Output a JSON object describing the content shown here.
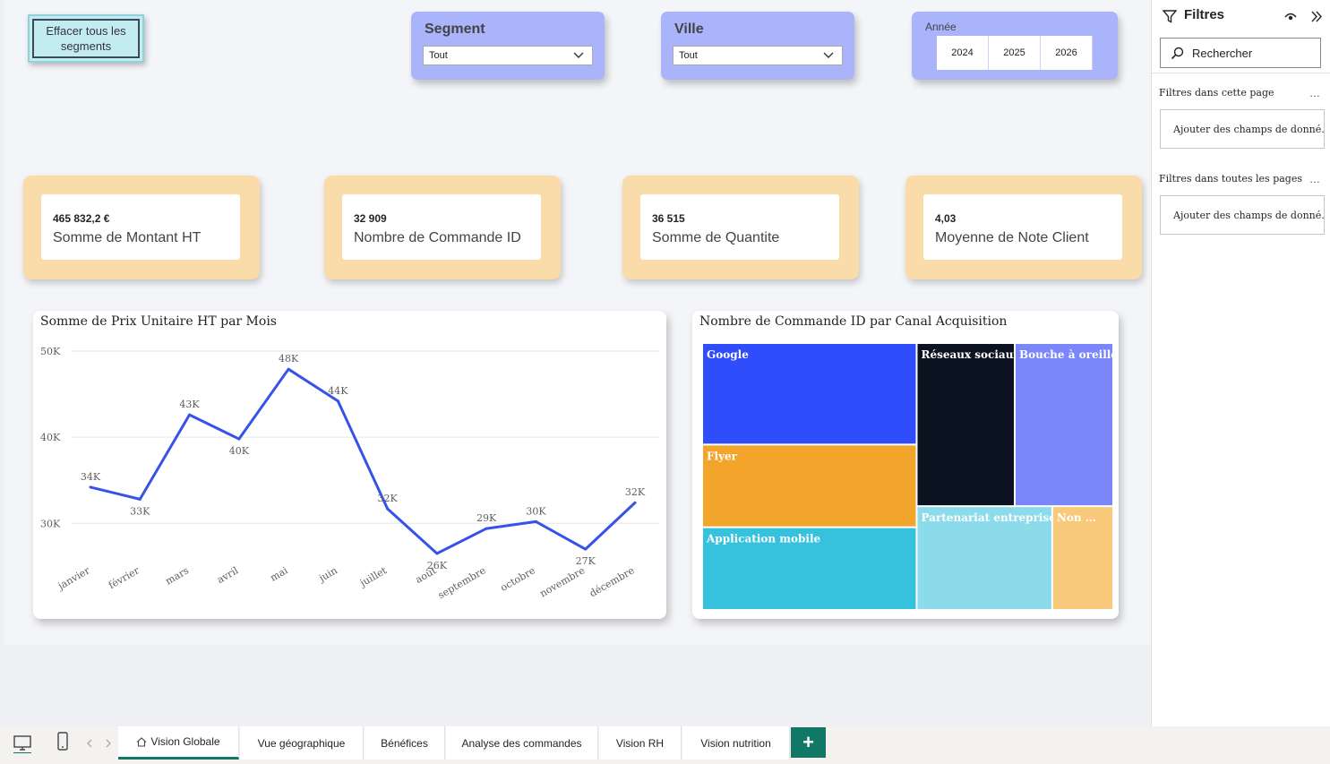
{
  "clear_button": {
    "label": "Effacer tous les segments"
  },
  "slicers": {
    "segment": {
      "title": "Segment",
      "value": "Tout"
    },
    "ville": {
      "title": "Ville",
      "value": "Tout"
    },
    "annee": {
      "title": "Année",
      "years": [
        "2024",
        "2025",
        "2026"
      ]
    }
  },
  "kpis": [
    {
      "value": "465 832,2 €",
      "label": "Somme de Montant HT"
    },
    {
      "value": "32 909",
      "label": "Nombre de Commande ID"
    },
    {
      "value": "36 515",
      "label": "Somme de Quantite"
    },
    {
      "value": "4,03",
      "label": "Moyenne de Note Client"
    }
  ],
  "line_chart_title": "Somme de Prix Unitaire HT par Mois",
  "treemap_title": "Nombre de Commande ID par Canal Acquisition",
  "chart_data": [
    {
      "type": "line",
      "title": "Somme de Prix Unitaire HT par Mois",
      "categories": [
        "janvier",
        "février",
        "mars",
        "avril",
        "mai",
        "juin",
        "juillet",
        "août",
        "septembre",
        "octobre",
        "novembre",
        "décembre"
      ],
      "values": [
        34200,
        32800,
        42600,
        39800,
        47900,
        44200,
        31700,
        26500,
        29400,
        30200,
        27000,
        32400
      ],
      "data_labels": [
        "34K",
        "33K",
        "43K",
        "40K",
        "48K",
        "44K",
        "32K",
        "26K",
        "29K",
        "30K",
        "27K",
        "32K"
      ],
      "y_ticks": [
        "30K",
        "40K",
        "50K"
      ],
      "ylim": [
        24000,
        50000
      ],
      "color": "#3553e8",
      "grid": true
    },
    {
      "type": "treemap",
      "title": "Nombre de Commande ID par Canal Acquisition",
      "items": [
        {
          "label": "Google",
          "value": 6530,
          "color": "#2f4dfb"
        },
        {
          "label": "Flyer",
          "value": 5320,
          "color": "#f2a52a"
        },
        {
          "label": "Application mobile",
          "value": 5320,
          "color": "#36c1dc"
        },
        {
          "label": "Réseaux sociaux",
          "value": 4800,
          "color": "#0b1321"
        },
        {
          "label": "Bouche à oreille",
          "value": 4820,
          "color": "#7b86fb"
        },
        {
          "label": "Partenariat entreprise",
          "value": 4220,
          "color": "#8bdbea"
        },
        {
          "label": "Non …",
          "value": 1900,
          "color": "#f8c97a"
        }
      ]
    }
  ],
  "filters_pane": {
    "title": "Filtres",
    "search_placeholder": "Rechercher",
    "section_page": "Filtres dans cette page",
    "section_all": "Filtres dans toutes les pages",
    "well_page": "Ajouter des champs de donné…",
    "well_all": "Ajouter des champs de donné…"
  },
  "tabs": [
    {
      "label": "Vision Globale",
      "active": true
    },
    {
      "label": "Vue géographique"
    },
    {
      "label": "Bénéfices"
    },
    {
      "label": "Analyse des commandes"
    },
    {
      "label": "Vision RH"
    },
    {
      "label": "Vision nutrition"
    }
  ],
  "add_tab_label": "+"
}
